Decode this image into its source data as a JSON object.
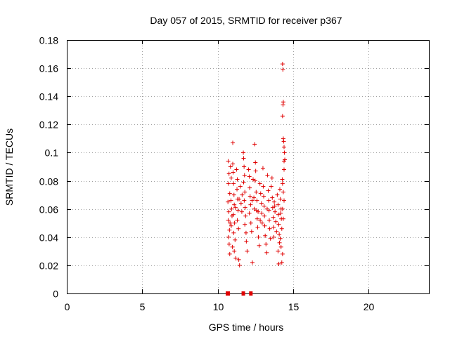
{
  "chart_data": {
    "type": "scatter",
    "title": "Day 057 of 2015, SRMTID for receiver p367",
    "xlabel": "GPS time / hours",
    "ylabel": "SRMTID / TECUs",
    "xlim": [
      0,
      24
    ],
    "ylim": [
      0,
      0.18
    ],
    "xticks": [
      0,
      5,
      10,
      15,
      20
    ],
    "xtick_labels": [
      "0",
      "5",
      "10",
      "15",
      "20"
    ],
    "yticks": [
      0,
      0.02,
      0.04,
      0.06,
      0.08,
      0.1,
      0.12,
      0.14,
      0.16,
      0.18
    ],
    "ytick_labels": [
      "0",
      "0.02",
      "0.04",
      "0.06",
      "0.08",
      "0.1",
      "0.12",
      "0.14",
      "0.16",
      "0.18"
    ],
    "grid": true,
    "marker": "+",
    "color": "#e00000",
    "zero_points_x": [
      10.65,
      10.7,
      11.7,
      12.2
    ],
    "points": [
      [
        10.7,
        0.094
      ],
      [
        10.75,
        0.085
      ],
      [
        10.72,
        0.078
      ],
      [
        10.8,
        0.071
      ],
      [
        10.68,
        0.065
      ],
      [
        10.74,
        0.058
      ],
      [
        10.7,
        0.052
      ],
      [
        10.78,
        0.045
      ],
      [
        10.72,
        0.04
      ],
      [
        10.76,
        0.035
      ],
      [
        10.8,
        0.028
      ],
      [
        10.85,
        0.09
      ],
      [
        10.9,
        0.082
      ],
      [
        10.88,
        0.066
      ],
      [
        10.92,
        0.06
      ],
      [
        10.95,
        0.055
      ],
      [
        10.9,
        0.048
      ],
      [
        10.98,
        0.033
      ],
      [
        11.0,
        0.107
      ],
      [
        11.0,
        0.092
      ],
      [
        11.02,
        0.086
      ],
      [
        11.05,
        0.078
      ],
      [
        11.08,
        0.07
      ],
      [
        11.1,
        0.063
      ],
      [
        11.04,
        0.056
      ],
      [
        11.12,
        0.05
      ],
      [
        11.06,
        0.043
      ],
      [
        11.15,
        0.038
      ],
      [
        11.1,
        0.03
      ],
      [
        11.2,
        0.025
      ],
      [
        11.25,
        0.088
      ],
      [
        11.3,
        0.081
      ],
      [
        11.28,
        0.074
      ],
      [
        11.32,
        0.067
      ],
      [
        11.35,
        0.059
      ],
      [
        11.3,
        0.052
      ],
      [
        11.38,
        0.046
      ],
      [
        11.4,
        0.024
      ],
      [
        11.45,
        0.02
      ],
      [
        11.5,
        0.076
      ],
      [
        11.55,
        0.064
      ],
      [
        11.6,
        0.058
      ],
      [
        11.7,
        0.1
      ],
      [
        11.72,
        0.096
      ],
      [
        11.75,
        0.09
      ],
      [
        11.78,
        0.084
      ],
      [
        11.72,
        0.079
      ],
      [
        11.8,
        0.072
      ],
      [
        11.76,
        0.066
      ],
      [
        11.82,
        0.061
      ],
      [
        11.85,
        0.055
      ],
      [
        11.8,
        0.049
      ],
      [
        11.88,
        0.043
      ],
      [
        11.9,
        0.037
      ],
      [
        11.95,
        0.03
      ],
      [
        12.05,
        0.088
      ],
      [
        12.1,
        0.083
      ],
      [
        12.12,
        0.075
      ],
      [
        12.15,
        0.069
      ],
      [
        12.18,
        0.063
      ],
      [
        12.1,
        0.057
      ],
      [
        12.2,
        0.05
      ],
      [
        12.25,
        0.044
      ],
      [
        12.3,
        0.022
      ],
      [
        12.35,
        0.081
      ],
      [
        12.4,
        0.068
      ],
      [
        12.42,
        0.06
      ],
      [
        12.45,
        0.106
      ],
      [
        12.5,
        0.093
      ],
      [
        12.52,
        0.087
      ],
      [
        12.48,
        0.08
      ],
      [
        12.55,
        0.072
      ],
      [
        12.6,
        0.066
      ],
      [
        12.58,
        0.059
      ],
      [
        12.62,
        0.053
      ],
      [
        12.65,
        0.047
      ],
      [
        12.7,
        0.04
      ],
      [
        12.75,
        0.034
      ],
      [
        12.8,
        0.078
      ],
      [
        12.85,
        0.071
      ],
      [
        12.9,
        0.064
      ],
      [
        12.92,
        0.057
      ],
      [
        12.95,
        0.05
      ],
      [
        13.0,
        0.089
      ],
      [
        13.02,
        0.076
      ],
      [
        13.05,
        0.069
      ],
      [
        13.08,
        0.062
      ],
      [
        13.1,
        0.055
      ],
      [
        13.12,
        0.048
      ],
      [
        13.15,
        0.041
      ],
      [
        13.2,
        0.035
      ],
      [
        13.25,
        0.029
      ],
      [
        13.3,
        0.084
      ],
      [
        13.35,
        0.073
      ],
      [
        13.38,
        0.066
      ],
      [
        13.4,
        0.059
      ],
      [
        13.42,
        0.052
      ],
      [
        13.45,
        0.046
      ],
      [
        13.5,
        0.039
      ],
      [
        13.55,
        0.076
      ],
      [
        13.6,
        0.082
      ],
      [
        13.62,
        0.068
      ],
      [
        13.65,
        0.061
      ],
      [
        13.68,
        0.054
      ],
      [
        13.7,
        0.047
      ],
      [
        13.72,
        0.04
      ],
      [
        13.75,
        0.065
      ],
      [
        13.8,
        0.058
      ],
      [
        13.85,
        0.051
      ],
      [
        13.9,
        0.044
      ],
      [
        13.95,
        0.07
      ],
      [
        14.0,
        0.063
      ],
      [
        14.02,
        0.056
      ],
      [
        14.05,
        0.049
      ],
      [
        14.08,
        0.042
      ],
      [
        14.1,
        0.036
      ],
      [
        14.0,
        0.03
      ],
      [
        14.05,
        0.021
      ],
      [
        14.12,
        0.074
      ],
      [
        14.15,
        0.067
      ],
      [
        14.2,
        0.06
      ],
      [
        14.22,
        0.053
      ],
      [
        14.25,
        0.046
      ],
      [
        14.28,
        0.081
      ],
      [
        14.3,
        0.163
      ],
      [
        14.32,
        0.159
      ],
      [
        14.35,
        0.136
      ],
      [
        14.33,
        0.134
      ],
      [
        14.3,
        0.126
      ],
      [
        14.35,
        0.11
      ],
      [
        14.38,
        0.108
      ],
      [
        14.4,
        0.104
      ],
      [
        14.42,
        0.1
      ],
      [
        14.45,
        0.095
      ],
      [
        14.4,
        0.088
      ],
      [
        14.3,
        0.078
      ],
      [
        14.35,
        0.072
      ],
      [
        14.4,
        0.066
      ],
      [
        14.3,
        0.06
      ],
      [
        14.35,
        0.053
      ],
      [
        14.25,
        0.022
      ],
      [
        14.3,
        0.028
      ],
      [
        14.2,
        0.033
      ],
      [
        14.15,
        0.039
      ],
      [
        14.4,
        0.094
      ],
      [
        10.82,
        0.05
      ],
      [
        11.18,
        0.061
      ],
      [
        11.62,
        0.07
      ],
      [
        12.28,
        0.066
      ],
      [
        12.68,
        0.058
      ],
      [
        13.28,
        0.06
      ],
      [
        13.78,
        0.062
      ],
      [
        14.18,
        0.057
      ],
      [
        11.42,
        0.067
      ],
      [
        12.82,
        0.052
      ]
    ]
  }
}
